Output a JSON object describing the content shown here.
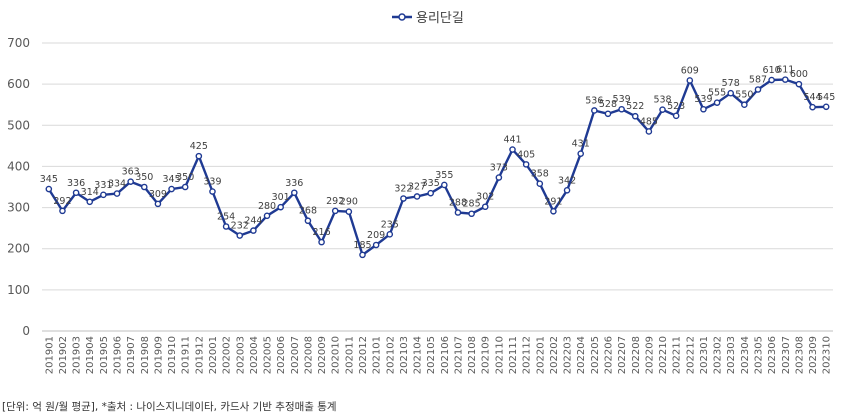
{
  "chart_data": {
    "type": "line",
    "title": "",
    "xlabel": "",
    "ylabel": "",
    "ylim": [
      0,
      700
    ],
    "yticks": [
      0,
      100,
      200,
      300,
      400,
      500,
      600,
      700
    ],
    "grid": true,
    "legend_position": "top-center",
    "categories": [
      "201901",
      "201902",
      "201903",
      "201904",
      "201905",
      "201906",
      "201907",
      "201908",
      "201909",
      "201910",
      "201911",
      "201912",
      "202001",
      "202002",
      "202003",
      "202004",
      "202005",
      "202006",
      "202007",
      "202008",
      "202009",
      "202010",
      "202011",
      "202012",
      "202101",
      "202102",
      "202103",
      "202104",
      "202105",
      "202106",
      "202107",
      "202108",
      "202109",
      "202110",
      "202111",
      "202112",
      "202201",
      "202202",
      "202203",
      "202204",
      "202205",
      "202206",
      "202207",
      "202208",
      "202209",
      "202210",
      "202211",
      "202212",
      "202301",
      "202302",
      "202303",
      "202304",
      "202305",
      "202306",
      "202307",
      "202308",
      "202309",
      "202310"
    ],
    "series": [
      {
        "name": "용리단길",
        "color": "#1f3a93",
        "values": [
          345,
          292,
          336,
          314,
          331,
          334,
          363,
          350,
          309,
          345,
          350,
          425,
          339,
          254,
          232,
          244,
          280,
          301,
          336,
          268,
          216,
          292,
          290,
          185,
          209,
          235,
          322,
          327,
          335,
          355,
          288,
          285,
          302,
          373,
          441,
          405,
          358,
          291,
          342,
          431,
          536,
          528,
          539,
          522,
          485,
          538,
          523,
          609,
          539,
          555,
          578,
          550,
          587,
          610,
          611,
          600,
          544,
          545
        ]
      }
    ]
  },
  "footnote": "[단위: 억 원/월 평균], *출처 : 나이스지니데이타, 카드사 기반 추정매출 통계"
}
